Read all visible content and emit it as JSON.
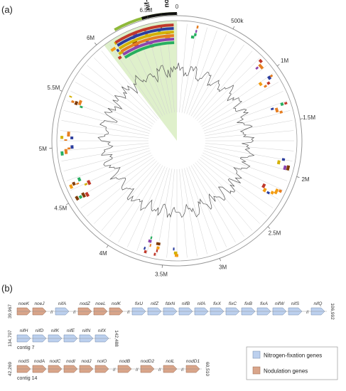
{
  "panel_a_label": "(a)",
  "panel_b_label": "(b)",
  "genome_ticks": [
    "0",
    "500k",
    "1M",
    "1.5M",
    "2M",
    "2.5M",
    "3M",
    "3.5M",
    "4M",
    "4.5M",
    "5M",
    "5.5M",
    "6M",
    "6.5M"
  ],
  "genome_length_mb": 6.75,
  "regions": [
    {
      "label": "nif-fix",
      "start_mb": 6.45,
      "end_mb": 6.62
    },
    {
      "label": "nod",
      "start_mb": 6.62,
      "end_mb": 6.75
    }
  ],
  "colors": {
    "nitrogen": "#bcd0ee",
    "nodulation": "#d9a58a",
    "highlight": "#c9e6a8",
    "region_bar": "#8fb93a"
  },
  "rows": [
    {
      "start": "39,967",
      "end": "106,992",
      "contig": "",
      "genes": [
        {
          "name": "noeK",
          "type": "nod"
        },
        {
          "name": "noeJ",
          "type": "nod"
        },
        {
          "name": "//",
          "type": "break"
        },
        {
          "name": "nifA",
          "type": "nif"
        },
        {
          "name": "//",
          "type": "break"
        },
        {
          "name": "nodZ",
          "type": "nod"
        },
        {
          "name": "noeL",
          "type": "nod"
        },
        {
          "name": "nolK",
          "type": "nod"
        },
        {
          "name": "//",
          "type": "break"
        },
        {
          "name": "fixU",
          "type": "nif"
        },
        {
          "name": "nifZ",
          "type": "nif"
        },
        {
          "name": "fdxN",
          "type": "nif"
        },
        {
          "name": "nifB",
          "type": "nif"
        },
        {
          "name": "nifA",
          "type": "nif"
        },
        {
          "name": "fixX",
          "type": "nif"
        },
        {
          "name": "fixC",
          "type": "nif"
        },
        {
          "name": "fixB",
          "type": "nif"
        },
        {
          "name": "fixA",
          "type": "nif"
        },
        {
          "name": "nifW",
          "type": "nif"
        },
        {
          "name": "nifS",
          "type": "nif"
        },
        {
          "name": "//",
          "type": "break"
        },
        {
          "name": "nifQ",
          "type": "nif"
        }
      ]
    },
    {
      "start": "134,707",
      "end": "142,488",
      "contig": "contig 7",
      "genes": [
        {
          "name": "nifH",
          "type": "nif"
        },
        {
          "name": "nifD",
          "type": "nif"
        },
        {
          "name": "nifK",
          "type": "nif"
        },
        {
          "name": "nifE",
          "type": "nif"
        },
        {
          "name": "nifN",
          "type": "nif"
        },
        {
          "name": "nifX",
          "type": "nif"
        }
      ]
    },
    {
      "start": "42,269",
      "end": "60,510",
      "contig": "contig 14",
      "genes": [
        {
          "name": "nodS",
          "type": "nod"
        },
        {
          "name": "nodA",
          "type": "nod"
        },
        {
          "name": "nodC",
          "type": "nod"
        },
        {
          "name": "nodI",
          "type": "nod"
        },
        {
          "name": "nodJ",
          "type": "nod"
        },
        {
          "name": "nolO",
          "type": "nod"
        },
        {
          "name": "//",
          "type": "break"
        },
        {
          "name": "nodB",
          "type": "nod"
        },
        {
          "name": "//",
          "type": "break"
        },
        {
          "name": "nodD2",
          "type": "nod"
        },
        {
          "name": "//",
          "type": "break"
        },
        {
          "name": "nolL",
          "type": "nod"
        },
        {
          "name": "//",
          "type": "break"
        },
        {
          "name": "nodD1",
          "type": "nod"
        }
      ]
    }
  ],
  "legend": [
    {
      "label": "Nitrogen-fixation genes",
      "type": "nif"
    },
    {
      "label": "Nodulation genes",
      "type": "nod"
    }
  ]
}
